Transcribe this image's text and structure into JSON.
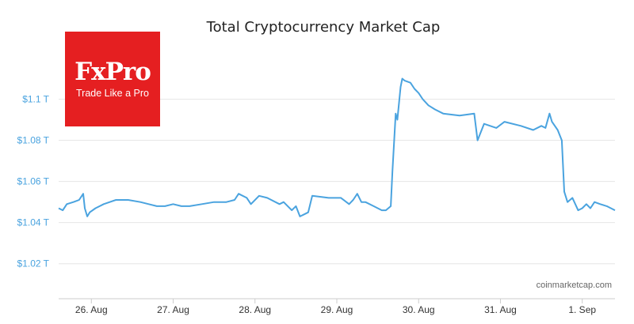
{
  "logo": {
    "name": "FxPro",
    "tagline": "Trade Like a Pro"
  },
  "credit": "coinmarketcap.com",
  "colors": {
    "line": "#4aa3df",
    "logo_bg": "#e51f21",
    "grid": "#e6e6e6"
  },
  "chart_data": {
    "type": "line",
    "title": "Total Cryptocurrency Market Cap",
    "xlabel": "",
    "ylabel": "",
    "grid": true,
    "legend": "none",
    "x_unit": "days",
    "xlim": [
      25.6,
      32.4
    ],
    "ylim": [
      1.003,
      1.129
    ],
    "y_ticks": [
      1.02,
      1.04,
      1.06,
      1.08,
      1.1
    ],
    "y_tick_labels": [
      "$1.02 T",
      "$1.04 T",
      "$1.06 T",
      "$1.08 T",
      "$1.1 T"
    ],
    "x_ticks": [
      26,
      27,
      28,
      29,
      30,
      31,
      32
    ],
    "x_tick_labels": [
      "26. Aug",
      "27. Aug",
      "28. Aug",
      "29. Aug",
      "30. Aug",
      "31. Aug",
      "1. Sep"
    ],
    "series": [
      {
        "x": [
          25.6,
          25.65,
          25.7,
          25.78,
          25.85,
          25.9,
          25.92,
          25.95,
          25.98,
          26.05,
          26.15,
          26.3,
          26.45,
          26.6,
          26.7,
          26.8,
          26.9,
          27.0,
          27.1,
          27.2,
          27.35,
          27.5,
          27.65,
          27.75,
          27.8,
          27.9,
          27.95,
          28.05,
          28.15,
          28.3,
          28.35,
          28.45,
          28.5,
          28.55,
          28.6,
          28.65,
          28.7,
          28.9,
          29.05,
          29.15,
          29.2,
          29.25,
          29.3,
          29.35,
          29.45,
          29.55,
          29.6,
          29.66,
          29.68,
          29.72,
          29.74,
          29.78,
          29.8,
          29.83,
          29.9,
          29.95,
          30.0,
          30.05,
          30.12,
          30.2,
          30.3,
          30.5,
          30.68,
          30.72,
          30.8,
          30.95,
          31.05,
          31.25,
          31.4,
          31.5,
          31.55,
          31.6,
          31.63,
          31.7,
          31.75,
          31.78,
          31.82,
          31.88,
          31.95,
          32.0,
          32.05,
          32.1,
          32.15,
          32.22,
          32.3,
          32.4
        ],
        "y": [
          1.047,
          1.046,
          1.049,
          1.05,
          1.051,
          1.054,
          1.047,
          1.043,
          1.045,
          1.047,
          1.049,
          1.051,
          1.051,
          1.05,
          1.049,
          1.048,
          1.048,
          1.049,
          1.048,
          1.048,
          1.049,
          1.05,
          1.05,
          1.051,
          1.054,
          1.052,
          1.049,
          1.053,
          1.052,
          1.049,
          1.05,
          1.046,
          1.048,
          1.043,
          1.044,
          1.045,
          1.053,
          1.052,
          1.052,
          1.049,
          1.051,
          1.054,
          1.05,
          1.05,
          1.048,
          1.046,
          1.046,
          1.048,
          1.065,
          1.093,
          1.09,
          1.106,
          1.11,
          1.109,
          1.108,
          1.105,
          1.103,
          1.1,
          1.097,
          1.095,
          1.093,
          1.092,
          1.093,
          1.08,
          1.088,
          1.086,
          1.089,
          1.087,
          1.085,
          1.087,
          1.086,
          1.093,
          1.089,
          1.085,
          1.08,
          1.055,
          1.05,
          1.052,
          1.046,
          1.047,
          1.049,
          1.047,
          1.05,
          1.049,
          1.048,
          1.046
        ]
      }
    ]
  }
}
